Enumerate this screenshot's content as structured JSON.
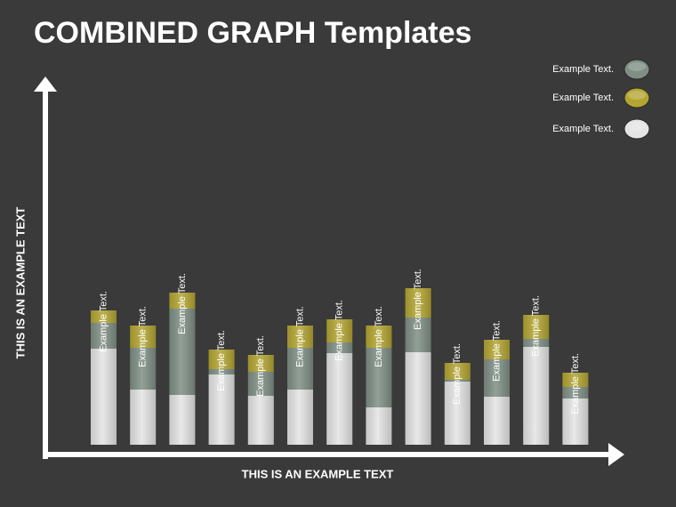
{
  "chart_data": {
    "type": "stacked-bar",
    "title": "COMBINED GRAPH Templates",
    "x_label": "THIS IS AN EXAMPLE TEXT",
    "y_label": "THIS IS AN EXAMPLE TEXT",
    "bar_labels": [
      "Example Text.",
      "Example Text.",
      "Example Text.",
      "Example Text.",
      "Example Text.",
      "Example Text.",
      "Example Text.",
      "Example Text.",
      "Example Text.",
      "Example Text.",
      "Example Text.",
      "Example Text.",
      "Example Text."
    ],
    "ylim": [
      0,
      440
    ],
    "series": [
      {
        "name": "Example Text.",
        "color": "#7f8f85",
        "values": [
          29,
          47,
          97,
          6,
          27,
          47,
          12,
          67,
          39,
          2,
          42,
          9,
          13
        ]
      },
      {
        "name": "Example Text.",
        "color": "#b3a532",
        "values": [
          14,
          25,
          18,
          22,
          19,
          25,
          26,
          25,
          33,
          19,
          22,
          27,
          16
        ]
      },
      {
        "name": "Example Text.",
        "color": "#e4e4e4",
        "values": [
          108,
          62,
          56,
          79,
          55,
          62,
          103,
          42,
          104,
          71,
          54,
          110,
          52
        ]
      }
    ],
    "stack_order": [
      2,
      0,
      1
    ]
  }
}
